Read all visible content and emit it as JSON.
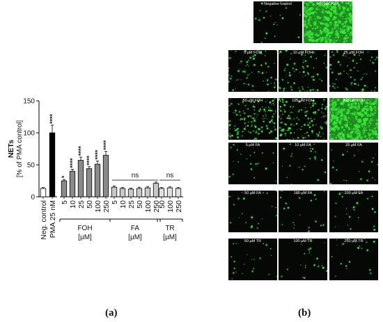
{
  "chart_data": {
    "type": "bar",
    "ylabel_main": "NETs",
    "ylabel_sub": "[% of PMA control]",
    "ylim": [
      0,
      150
    ],
    "yticks": [
      0,
      50,
      100,
      150
    ],
    "bars": [
      {
        "label": "Neg. control",
        "value": 13,
        "error": 1.5,
        "color": "#ffffff",
        "sig": ""
      },
      {
        "label": "PMA 25 nM",
        "value": 100,
        "error": 12,
        "color": "#000000",
        "sig": "****"
      },
      {
        "label": "5",
        "value": 25,
        "error": 2,
        "color": "#8a8a8a",
        "sig": "*"
      },
      {
        "label": "10",
        "value": 40,
        "error": 3,
        "color": "#8a8a8a",
        "sig": "****"
      },
      {
        "label": "25",
        "value": 57,
        "error": 5,
        "color": "#8a8a8a",
        "sig": "****"
      },
      {
        "label": "50",
        "value": 44,
        "error": 3,
        "color": "#8a8a8a",
        "sig": "****"
      },
      {
        "label": "100",
        "value": 51,
        "error": 5,
        "color": "#8a8a8a",
        "sig": "****"
      },
      {
        "label": "250",
        "value": 65,
        "error": 6,
        "color": "#8a8a8a",
        "sig": "****"
      },
      {
        "label": "5",
        "value": 15,
        "error": 2,
        "color": "#c8c8c8",
        "sig": ""
      },
      {
        "label": "10",
        "value": 13,
        "error": 1.5,
        "color": "#c8c8c8",
        "sig": ""
      },
      {
        "label": "25",
        "value": 12,
        "error": 1.5,
        "color": "#c8c8c8",
        "sig": ""
      },
      {
        "label": "50",
        "value": 13,
        "error": 2,
        "color": "#c8c8c8",
        "sig": ""
      },
      {
        "label": "100",
        "value": 14,
        "error": 2,
        "color": "#c8c8c8",
        "sig": ""
      },
      {
        "label": "250",
        "value": 21,
        "error": 2,
        "color": "#c8c8c8",
        "sig": ""
      },
      {
        "label": "50",
        "value": 13,
        "error": 1.5,
        "color": "#e0e0e0",
        "sig": ""
      },
      {
        "label": "100",
        "value": 14,
        "error": 1.5,
        "color": "#e0e0e0",
        "sig": ""
      },
      {
        "label": "250",
        "value": 13,
        "error": 1.5,
        "color": "#e0e0e0",
        "sig": ""
      }
    ],
    "groups": [
      {
        "name": "FOH",
        "unit": "[µM]",
        "first": 2,
        "last": 7,
        "ns": ""
      },
      {
        "name": "FA",
        "unit": "[µM]",
        "first": 8,
        "last": 13,
        "ns": "ns"
      },
      {
        "name": "TR",
        "unit": "[µM]",
        "first": 14,
        "last": 16,
        "ns": "ns"
      }
    ]
  },
  "micrographs": {
    "rows": [
      [
        {
          "label": "Negative control",
          "density": "low"
        },
        {
          "label": "100 nM PMA",
          "density": "max"
        }
      ],
      [
        {
          "label": "5 µM FOH",
          "density": "med"
        },
        {
          "label": "10 µM FOH",
          "density": "med"
        },
        {
          "label": "25 µM FOH",
          "density": "med"
        }
      ],
      [
        {
          "label": "50 µM FOH",
          "density": "high"
        },
        {
          "label": "100 µM FOH",
          "density": "high"
        },
        {
          "label": "200 µM FOH",
          "density": "max"
        }
      ],
      [
        {
          "label": "5 µM FA",
          "density": "low"
        },
        {
          "label": "10 µM FA",
          "density": "low"
        },
        {
          "label": "25 µM FA",
          "density": "low"
        }
      ],
      [
        {
          "label": "50 µM FA",
          "density": "low"
        },
        {
          "label": "100 µM FA",
          "density": "low"
        },
        {
          "label": "200 µM FA",
          "density": "low"
        }
      ],
      [
        {
          "label": "50 µM TR",
          "density": "low"
        },
        {
          "label": "100 µM TR",
          "density": "low"
        },
        {
          "label": "250 µM TR",
          "density": "low"
        }
      ]
    ]
  },
  "captions": {
    "a": "(a)",
    "b": "(b)"
  },
  "colors": {
    "tile_bg": "#050805",
    "cell": "#39e639"
  }
}
